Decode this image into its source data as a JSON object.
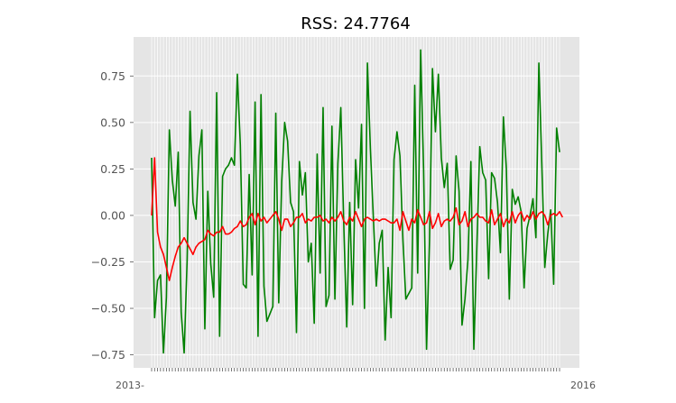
{
  "chart_data": {
    "type": "line",
    "title": "RSS: 24.7764",
    "xlabel": "",
    "ylabel": "",
    "ylim": [
      -0.82,
      0.96
    ],
    "y_ticks": [
      -0.75,
      -0.5,
      -0.25,
      0.0,
      0.25,
      0.5,
      0.75
    ],
    "y_tick_labels": [
      "−0.75",
      "−0.50",
      "−0.25",
      "0.00",
      "0.25",
      "0.50",
      "0.75"
    ],
    "x_ticks_start_label": "2013-",
    "x_ticks_end_label": "2016",
    "grid": true,
    "legend": "none",
    "colors": {
      "series_0": "#008000",
      "series_1": "#ff0000",
      "background": "#e5e5e5",
      "grid": "#ffffff"
    },
    "series": [
      {
        "values": [
          0.31,
          -0.55,
          -0.35,
          -0.32,
          -0.74,
          -0.44,
          0.46,
          0.19,
          0.05,
          0.34,
          -0.52,
          -0.74,
          -0.25,
          0.56,
          0.07,
          -0.02,
          0.32,
          0.46,
          -0.61,
          0.13,
          -0.26,
          -0.44,
          0.66,
          -0.65,
          0.21,
          0.25,
          0.27,
          0.31,
          0.27,
          0.76,
          0.38,
          -0.37,
          -0.39,
          0.22,
          -0.32,
          0.61,
          -0.65,
          0.65,
          -0.38,
          -0.57,
          -0.53,
          -0.49,
          0.55,
          -0.47,
          0.18,
          0.5,
          0.4,
          0.07,
          0.02,
          -0.63,
          0.29,
          0.11,
          0.23,
          -0.25,
          -0.15,
          -0.58,
          0.33,
          -0.31,
          0.58,
          -0.49,
          -0.43,
          0.48,
          -0.45,
          0.28,
          0.58,
          -0.05,
          -0.6,
          0.07,
          -0.48,
          0.3,
          0.04,
          0.49,
          -0.5,
          0.82,
          0.36,
          -0.01,
          -0.38,
          -0.15,
          -0.08,
          -0.67,
          -0.28,
          -0.55,
          0.3,
          0.45,
          0.32,
          -0.13,
          -0.45,
          -0.42,
          -0.39,
          0.7,
          -0.31,
          0.89,
          0.25,
          -0.72,
          -0.14,
          0.79,
          0.45,
          0.76,
          0.31,
          0.15,
          0.28,
          -0.29,
          -0.24,
          0.32,
          0.13,
          -0.59,
          -0.45,
          -0.24,
          0.29,
          -0.72,
          -0.18,
          0.37,
          0.23,
          0.19,
          -0.34,
          0.23,
          0.2,
          0.07,
          -0.2,
          0.53,
          0.25,
          -0.45,
          0.14,
          0.06,
          0.1,
          0.02,
          -0.39,
          -0.07,
          0.0,
          0.09,
          -0.12,
          0.82,
          0.27,
          -0.28,
          -0.1,
          0.03,
          -0.37,
          0.47,
          0.34
        ]
      },
      {
        "values": [
          0.0,
          0.31,
          -0.09,
          -0.17,
          -0.21,
          -0.28,
          -0.35,
          -0.28,
          -0.22,
          -0.17,
          -0.15,
          -0.12,
          -0.15,
          -0.18,
          -0.21,
          -0.17,
          -0.15,
          -0.14,
          -0.13,
          -0.08,
          -0.1,
          -0.11,
          -0.09,
          -0.09,
          -0.06,
          -0.1,
          -0.1,
          -0.09,
          -0.07,
          -0.06,
          -0.03,
          -0.06,
          -0.05,
          -0.01,
          0.01,
          -0.05,
          0.01,
          -0.03,
          -0.01,
          -0.04,
          -0.02,
          0.0,
          0.02,
          -0.02,
          -0.08,
          -0.02,
          -0.02,
          -0.06,
          -0.04,
          -0.01,
          -0.01,
          0.01,
          -0.04,
          -0.02,
          -0.03,
          -0.01,
          -0.01,
          0.0,
          -0.03,
          -0.02,
          -0.04,
          -0.01,
          -0.03,
          -0.01,
          0.02,
          -0.03,
          -0.05,
          -0.01,
          -0.03,
          0.02,
          -0.02,
          -0.06,
          -0.02,
          -0.01,
          -0.02,
          -0.03,
          -0.02,
          -0.03,
          -0.02,
          -0.02,
          -0.03,
          -0.04,
          -0.04,
          -0.02,
          -0.08,
          0.02,
          -0.03,
          -0.08,
          -0.02,
          -0.04,
          0.03,
          -0.01,
          -0.05,
          -0.04,
          0.02,
          -0.07,
          -0.04,
          0.01,
          -0.06,
          -0.03,
          -0.02,
          -0.03,
          -0.01,
          0.04,
          -0.05,
          -0.03,
          0.02,
          -0.06,
          -0.02,
          -0.01,
          0.01,
          -0.01,
          -0.01,
          -0.03,
          -0.04,
          0.03,
          -0.05,
          -0.02,
          0.01,
          -0.06,
          -0.02,
          -0.04,
          0.02,
          -0.04,
          0.0,
          0.02,
          -0.03,
          0.0,
          -0.02,
          0.02,
          -0.02,
          0.01,
          0.02,
          0.0,
          -0.05,
          0.0,
          0.01,
          0.0,
          0.02,
          -0.01
        ]
      }
    ]
  }
}
